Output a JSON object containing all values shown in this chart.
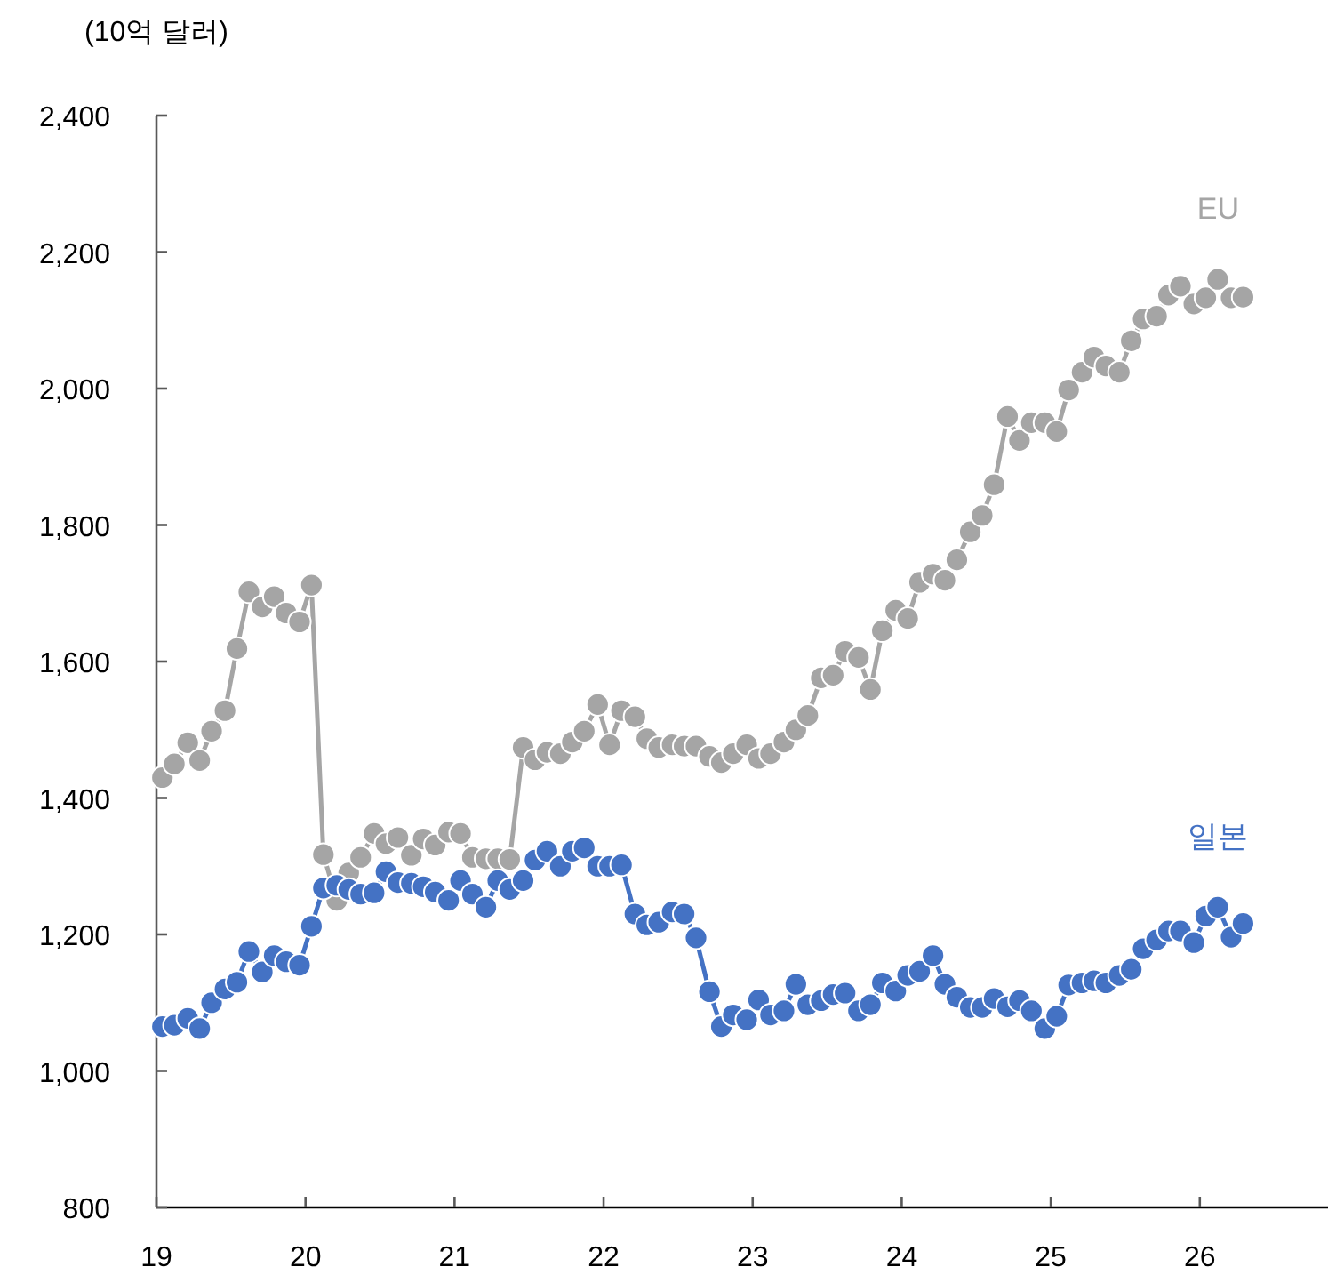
{
  "chart_data": {
    "type": "line",
    "ylabel": "(10억 달러)",
    "x": [
      19.04,
      19.12,
      19.21,
      19.29,
      19.37,
      19.46,
      19.54,
      19.62,
      19.71,
      19.79,
      19.87,
      19.96,
      20.04,
      20.12,
      20.21,
      20.29,
      20.37,
      20.46,
      20.54,
      20.62,
      20.71,
      20.79,
      20.87,
      20.96,
      21.04,
      21.12,
      21.21,
      21.29,
      21.37,
      21.46,
      21.54,
      21.62,
      21.71,
      21.79,
      21.87,
      21.96,
      22.04,
      22.12,
      22.21,
      22.29,
      22.37,
      22.46,
      22.54,
      22.62,
      22.71,
      22.79,
      22.87,
      22.96,
      23.04,
      23.12,
      23.21,
      23.29,
      23.37,
      23.46,
      23.54,
      23.62,
      23.71,
      23.79,
      23.87,
      23.96,
      24.04,
      24.12,
      24.21,
      24.29,
      24.37,
      24.46,
      24.54,
      24.62,
      24.71,
      24.79,
      24.87,
      24.96,
      25.04,
      25.12,
      25.21,
      25.29,
      25.37,
      25.46,
      25.54,
      25.62,
      25.71,
      25.79,
      25.87,
      25.96,
      26.04,
      26.12,
      26.21,
      26.29
    ],
    "series": [
      {
        "name": "EU",
        "color": "#a5a5a5",
        "values": [
          1430,
          1450,
          1481,
          1455,
          1498,
          1528,
          1619,
          1702,
          1680,
          1695,
          1671,
          1658,
          1712,
          1317,
          1250,
          1290,
          1313,
          1348,
          1333,
          1342,
          1316,
          1340,
          1331,
          1350,
          1348,
          1313,
          1311,
          1311,
          1310,
          1474,
          1456,
          1467,
          1465,
          1482,
          1498,
          1537,
          1478,
          1528,
          1519,
          1487,
          1474,
          1478,
          1476,
          1476,
          1461,
          1452,
          1465,
          1478,
          1458,
          1465,
          1482,
          1500,
          1521,
          1576,
          1580,
          1615,
          1606,
          1559,
          1645,
          1675,
          1663,
          1716,
          1728,
          1719,
          1749,
          1790,
          1814,
          1859,
          1959,
          1924,
          1950,
          1950,
          1937,
          1998,
          2024,
          2046,
          2033,
          2024,
          2070,
          2102,
          2106,
          2137,
          2150,
          2124,
          2133,
          2160,
          2133,
          2134
        ]
      },
      {
        "name": "일본",
        "color": "#4472c4",
        "values": [
          1065,
          1067,
          1077,
          1062,
          1100,
          1120,
          1130,
          1175,
          1145,
          1169,
          1160,
          1155,
          1212,
          1268,
          1272,
          1266,
          1259,
          1261,
          1292,
          1276,
          1275,
          1270,
          1262,
          1250,
          1279,
          1259,
          1240,
          1279,
          1266,
          1279,
          1309,
          1322,
          1300,
          1322,
          1327,
          1300,
          1300,
          1302,
          1230,
          1214,
          1218,
          1233,
          1230,
          1195,
          1116,
          1065,
          1082,
          1075,
          1104,
          1082,
          1088,
          1127,
          1097,
          1103,
          1112,
          1114,
          1088,
          1097,
          1129,
          1117,
          1140,
          1146,
          1169,
          1127,
          1108,
          1093,
          1093,
          1106,
          1094,
          1103,
          1088,
          1062,
          1080,
          1126,
          1129,
          1132,
          1129,
          1140,
          1149,
          1179,
          1192,
          1205,
          1205,
          1188,
          1227,
          1240,
          1196,
          1216
        ]
      }
    ],
    "xlim": [
      19,
      26.86
    ],
    "xticks": [
      19,
      20,
      21,
      22,
      23,
      24,
      25,
      26
    ],
    "ylim": [
      800,
      2400
    ],
    "yticks": [
      800,
      {
        "value": 1000,
        "label": "1,000"
      },
      {
        "value": 1200,
        "label": "1,200"
      },
      {
        "value": 1400,
        "label": "1,400"
      },
      {
        "value": 1600,
        "label": "1,600"
      },
      {
        "value": 1800,
        "label": "1,800"
      },
      {
        "value": 2000,
        "label": "2,000"
      },
      {
        "value": 2200,
        "label": "2,200"
      },
      {
        "value": 2400,
        "label": "2,400"
      }
    ],
    "marker": "circle",
    "grid": false,
    "legend": false
  }
}
